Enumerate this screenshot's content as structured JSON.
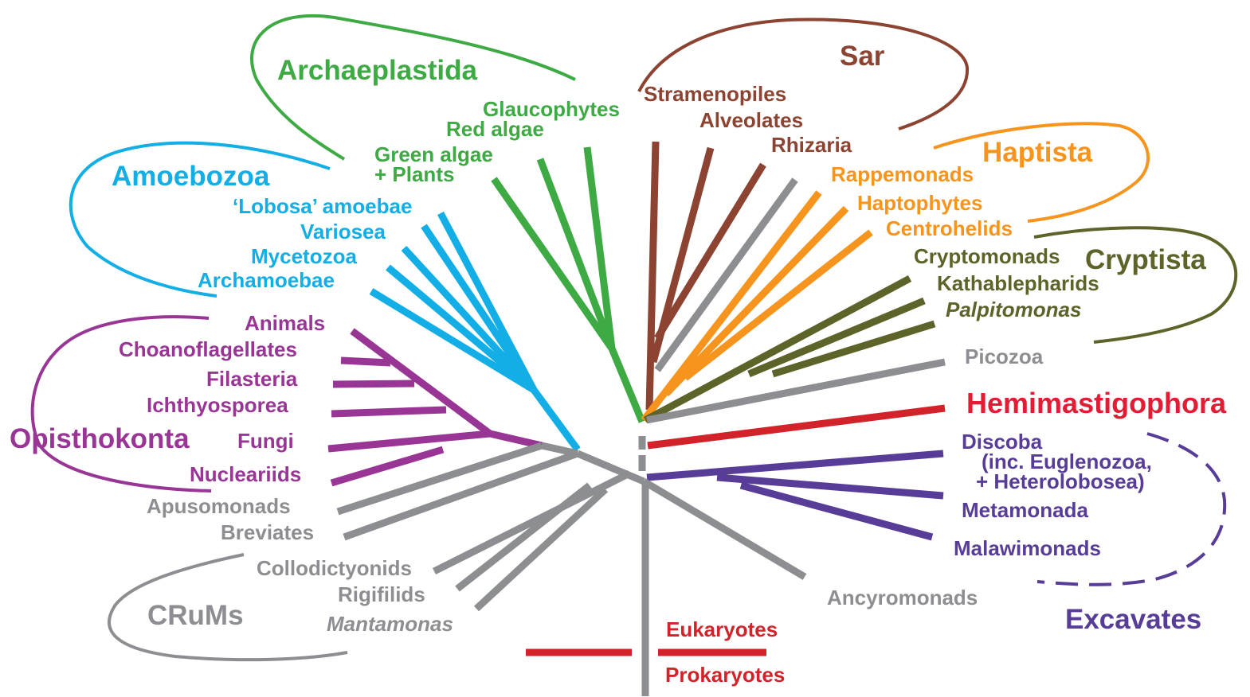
{
  "colors": {
    "archaeplastida": "#3daa44",
    "sar": "#8c4331",
    "amoebozoa": "#12aee5",
    "haptista": "#f7941d",
    "cryptista": "#5d6329",
    "opisthokonta": "#993695",
    "excavates": "#573d97",
    "hemimastigophora": "#e21c35",
    "grey": "#8d8e91",
    "root_bar": "#d2232a"
  },
  "supergroups": {
    "archaeplastida": "Archaeplastida",
    "sar": "Sar",
    "amoebozoa": "Amoebozoa",
    "haptista": "Haptista",
    "cryptista": "Cryptista",
    "opisthokonta": "Opisthokonta",
    "crums": "CRuMs",
    "excavates": "Excavates",
    "hemimastigophora": "Hemimastigophora"
  },
  "taxa": {
    "glaucophytes": "Glaucophytes",
    "red_algae": "Red algae",
    "green_algae": "Green algae",
    "plants": "+ Plants",
    "stramenopiles": "Stramenopiles",
    "alveolates": "Alveolates",
    "rhizaria": "Rhizaria",
    "rappemonads": "Rappemonads",
    "haptophytes": "Haptophytes",
    "centrohelids": "Centrohelids",
    "cryptomonads": "Cryptomonads",
    "kathablepharids": "Kathablepharids",
    "palpitomonas": "Palpitomonas",
    "picozoa": "Picozoa",
    "lobosa": "‘Lobosa’ amoebae",
    "variosea": "Variosea",
    "mycetozoa": "Mycetozoa",
    "archamoebae": "Archamoebae",
    "animals": "Animals",
    "choanoflagellates": "Choanoflagellates",
    "filasteria": "Filasteria",
    "ichthyosporea": "Ichthyosporea",
    "fungi": "Fungi",
    "nucleariids": "Nucleariids",
    "apusomonads": "Apusomonads",
    "breviates": "Breviates",
    "collodictyonids": "Collodictyonids",
    "rigifilids": "Rigifilids",
    "mantamonas": "Mantamonas",
    "discoba": "Discoba",
    "discoba_note1": "(inc. Euglenozoa,",
    "discoba_note2": "+ Heterolobosea)",
    "metamonada": "Metamonada",
    "malawimonads": "Malawimonads",
    "ancyromonads": "Ancyromonads"
  },
  "root": {
    "eukaryotes": "Eukaryotes",
    "prokaryotes": "Prokaryotes"
  }
}
